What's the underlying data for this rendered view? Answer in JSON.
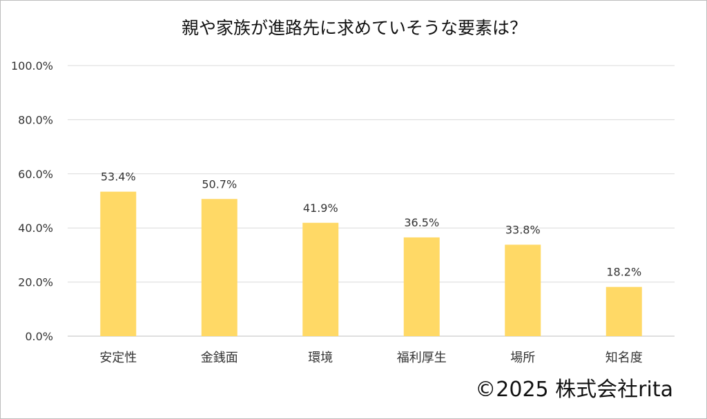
{
  "chart_data": {
    "type": "bar",
    "title": "親や家族が進路先に求めていそうな要素は？",
    "categories": [
      "安定性",
      "金銭面",
      "環境",
      "福利厚生",
      "場所",
      "知名度"
    ],
    "values": [
      53.4,
      50.7,
      41.9,
      36.5,
      33.8,
      18.2
    ],
    "value_labels": [
      "53.4%",
      "50.7%",
      "41.9%",
      "36.5%",
      "33.8%",
      "18.2%"
    ],
    "y_ticks": [
      "0.0%",
      "20.0%",
      "40.0%",
      "60.0%",
      "80.0%",
      "100.0%"
    ],
    "ylim": [
      0,
      100
    ],
    "xlabel": "",
    "ylabel": "",
    "grid": true,
    "legend": "none",
    "bar_color": "#FFD966"
  },
  "copyright": "©2025 株式会社rita"
}
